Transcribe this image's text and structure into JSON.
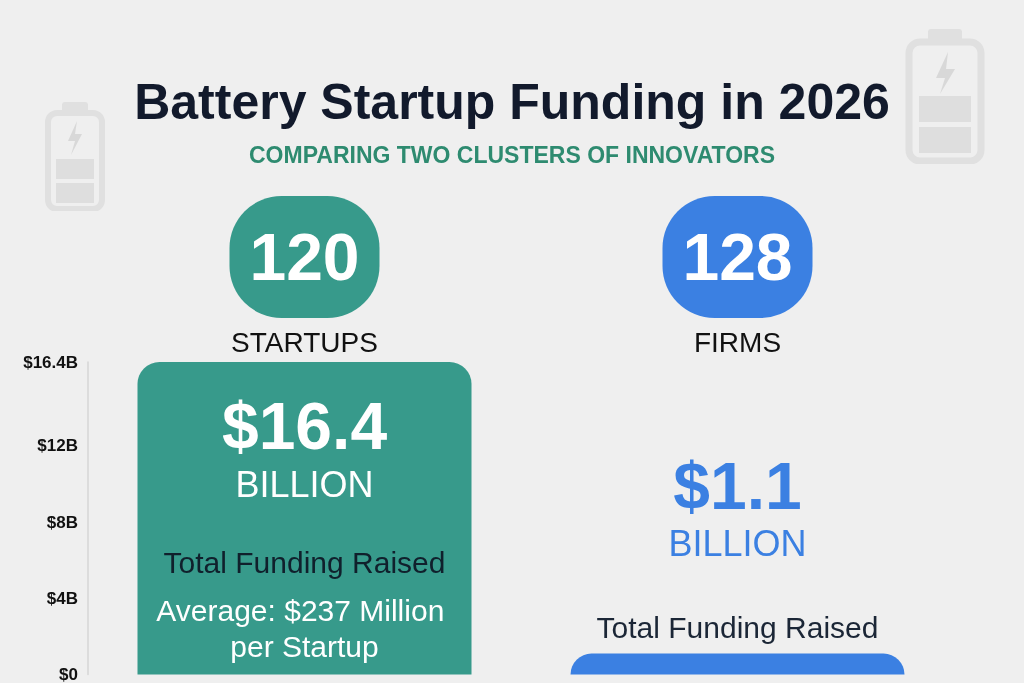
{
  "chart_data": {
    "type": "bar",
    "title": "Battery Startup Funding in 2026",
    "subtitle": "COMPARING TWO CLUSTERS OF INNOVATORS",
    "categories": [
      "120 STARTUPS",
      "128 FIRMS"
    ],
    "values": [
      16.4,
      1.1
    ],
    "colors": [
      "#379a8b",
      "#3b80e2"
    ],
    "value_labels": [
      "$16.4 BILLION",
      "$1.1 BILLION"
    ],
    "annotations": [
      "Total Funding Raised",
      "Average: $237 Million per Startup",
      {
        "text": "Total Funding Raised",
        "x": "128 FIRMS",
        "y": 1.1
      }
    ],
    "ylim": [
      0,
      16.4
    ],
    "yticks": [
      {
        "value": 0,
        "label": "$0"
      },
      {
        "value": 4,
        "label": "$4B"
      },
      {
        "value": 8,
        "label": "$8B"
      },
      {
        "value": 12,
        "label": "$12B"
      },
      {
        "value": 16.4,
        "label": "$16.4B"
      }
    ]
  }
}
